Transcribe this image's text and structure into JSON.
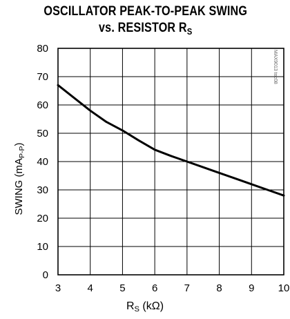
{
  "chart_data": {
    "type": "line",
    "title_line1": "OSCILLATOR PEAK-TO-PEAK SWING",
    "title_line2": "vs. RESISTOR R",
    "title_sub": "S",
    "xlabel_main": "R",
    "xlabel_sub": "S",
    "xlabel_rest": " (kΩ)",
    "ylabel_main": "SWING (mA",
    "ylabel_sub": "P-P",
    "ylabel_rest": ")",
    "xlim": [
      3,
      10
    ],
    "ylim": [
      0,
      80
    ],
    "x_ticks": [
      "3",
      "4",
      "5",
      "6",
      "7",
      "8",
      "9",
      "10"
    ],
    "y_ticks": [
      "0",
      "10",
      "20",
      "30",
      "40",
      "50",
      "60",
      "70",
      "80"
    ],
    "grid": true,
    "series": [
      {
        "x": [
          3,
          3.5,
          4,
          4.5,
          5,
          5.5,
          6,
          6.5,
          7,
          7.5,
          8,
          8.5,
          9,
          9.5,
          10
        ],
        "y": [
          67,
          62.5,
          58,
          54,
          51,
          47.5,
          44.2,
          42,
          40,
          38,
          36,
          34,
          32,
          30,
          28
        ],
        "color": "#000000"
      }
    ]
  },
  "side_code": "MAX9013 toc08"
}
